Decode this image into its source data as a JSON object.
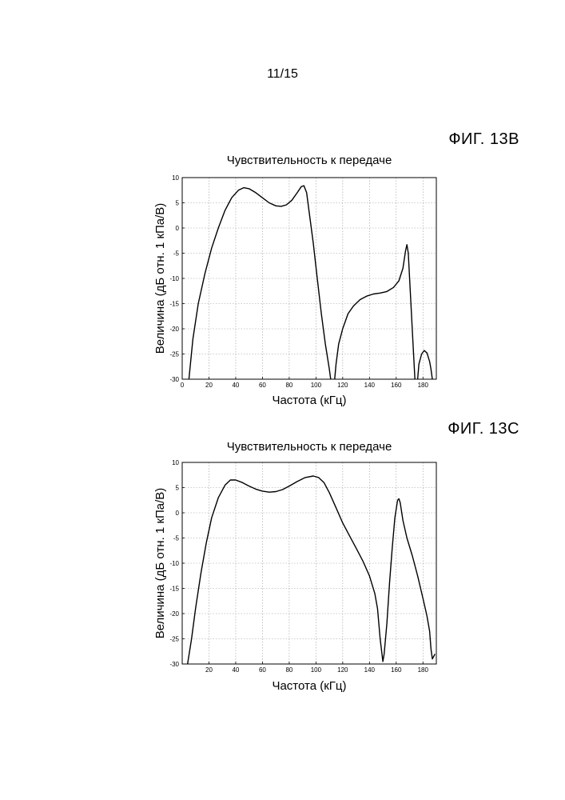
{
  "page": {
    "number": "11/15"
  },
  "figures": [
    {
      "label": "ФИГ. 13B"
    },
    {
      "label": "ФИГ. 13C"
    }
  ],
  "chart_data": [
    {
      "type": "line",
      "title": "Чувствительность к передаче",
      "xlabel": "Частота (кГц)",
      "ylabel": "Величина (дБ отн. 1 кПа/В)",
      "xlim": [
        0,
        190
      ],
      "ylim": [
        -30,
        10
      ],
      "xticks": [
        0,
        20,
        40,
        60,
        80,
        100,
        120,
        140,
        160,
        180
      ],
      "yticks": [
        10,
        5,
        0,
        -5,
        -10,
        -15,
        -20,
        -25,
        -30
      ],
      "grid": true,
      "segments": [
        [
          [
            5,
            -30
          ],
          [
            8,
            -22
          ],
          [
            12,
            -15
          ],
          [
            17,
            -9
          ],
          [
            22,
            -4
          ],
          [
            27,
            0
          ],
          [
            32,
            3.5
          ],
          [
            37,
            6
          ],
          [
            42,
            7.5
          ],
          [
            46,
            8
          ],
          [
            50,
            7.8
          ],
          [
            55,
            7
          ],
          [
            60,
            6
          ],
          [
            65,
            5
          ],
          [
            70,
            4.4
          ],
          [
            74,
            4.3
          ],
          [
            78,
            4.6
          ],
          [
            82,
            5.5
          ],
          [
            86,
            7
          ],
          [
            89,
            8.2
          ],
          [
            91,
            8.4
          ],
          [
            93,
            7
          ],
          [
            95,
            3
          ],
          [
            98,
            -3
          ],
          [
            101,
            -10
          ],
          [
            104,
            -17
          ],
          [
            107,
            -23
          ],
          [
            110,
            -28
          ],
          [
            111,
            -30
          ]
        ],
        [
          [
            114,
            -30
          ],
          [
            115,
            -27
          ],
          [
            117,
            -23
          ],
          [
            120,
            -20
          ],
          [
            124,
            -17
          ],
          [
            128,
            -15.5
          ],
          [
            133,
            -14.2
          ],
          [
            138,
            -13.5
          ],
          [
            143,
            -13.1
          ],
          [
            148,
            -12.9
          ],
          [
            153,
            -12.6
          ],
          [
            158,
            -11.8
          ],
          [
            162,
            -10.5
          ],
          [
            165,
            -8
          ],
          [
            167,
            -4.5
          ],
          [
            168,
            -3.3
          ],
          [
            169,
            -5
          ],
          [
            171,
            -15
          ],
          [
            173,
            -25
          ],
          [
            174,
            -30
          ]
        ],
        [
          [
            176,
            -30
          ],
          [
            177,
            -27
          ],
          [
            179,
            -25
          ],
          [
            181,
            -24.3
          ],
          [
            183,
            -24.8
          ],
          [
            185,
            -26.5
          ],
          [
            186,
            -28
          ],
          [
            187,
            -30
          ]
        ]
      ]
    },
    {
      "type": "line",
      "title": "Чувствительность к передаче",
      "xlabel": "Частота (кГц)",
      "ylabel": "Величина (дБ отн. 1 кПа/В)",
      "xlim": [
        0,
        190
      ],
      "ylim": [
        -30,
        10
      ],
      "xticks": [
        20,
        40,
        60,
        80,
        100,
        120,
        140,
        160,
        180
      ],
      "yticks": [
        10,
        5,
        0,
        -5,
        -10,
        -15,
        -20,
        -25,
        -30
      ],
      "grid": true,
      "segments": [
        [
          [
            4,
            -30
          ],
          [
            7,
            -25
          ],
          [
            10,
            -19
          ],
          [
            14,
            -12
          ],
          [
            18,
            -6
          ],
          [
            22,
            -1
          ],
          [
            27,
            3
          ],
          [
            32,
            5.5
          ],
          [
            36,
            6.5
          ],
          [
            40,
            6.5
          ],
          [
            45,
            6
          ],
          [
            50,
            5.3
          ],
          [
            55,
            4.7
          ],
          [
            60,
            4.3
          ],
          [
            65,
            4.1
          ],
          [
            70,
            4.2
          ],
          [
            75,
            4.6
          ],
          [
            80,
            5.3
          ],
          [
            86,
            6.2
          ],
          [
            92,
            7
          ],
          [
            98,
            7.3
          ],
          [
            102,
            7
          ],
          [
            106,
            6
          ],
          [
            110,
            4
          ],
          [
            115,
            1
          ],
          [
            120,
            -2
          ],
          [
            125,
            -4.5
          ],
          [
            130,
            -7
          ],
          [
            135,
            -9.5
          ],
          [
            140,
            -12.5
          ],
          [
            144,
            -16
          ],
          [
            146,
            -19
          ],
          [
            148,
            -25
          ],
          [
            150,
            -29.5
          ],
          [
            151,
            -28
          ],
          [
            153,
            -22
          ],
          [
            155,
            -14
          ],
          [
            157,
            -7
          ],
          [
            159,
            -1
          ],
          [
            161,
            2.5
          ],
          [
            162,
            2.8
          ],
          [
            163,
            2
          ],
          [
            165,
            -1.5
          ],
          [
            168,
            -5
          ],
          [
            172,
            -8.5
          ],
          [
            176,
            -12.5
          ],
          [
            180,
            -17
          ],
          [
            183,
            -20.5
          ],
          [
            185,
            -23.5
          ],
          [
            186,
            -27
          ],
          [
            187,
            -29
          ],
          [
            188,
            -28.5
          ],
          [
            189,
            -28
          ]
        ]
      ]
    }
  ]
}
